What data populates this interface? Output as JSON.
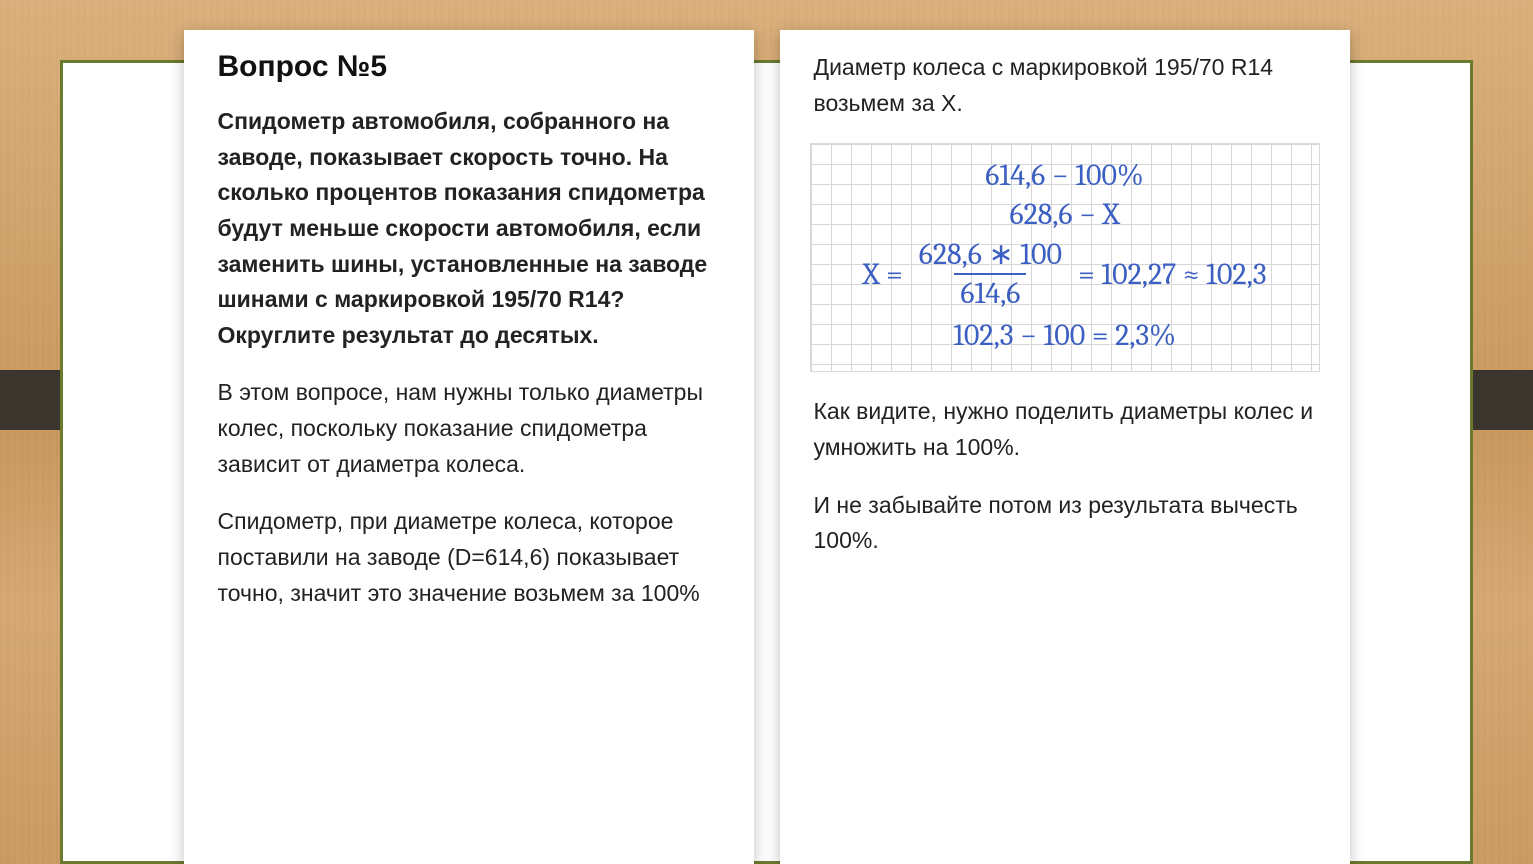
{
  "colors": {
    "frame_border": "#6a7a2f",
    "card_bg": "#ffffff",
    "text": "#222222",
    "heading": "#111111",
    "math_color": "#3b5fc2",
    "grid_line": "#d7d7d7",
    "dark_bar": "#3a352d",
    "wood_base": "#d6a874"
  },
  "typography": {
    "body_font": "Arial",
    "math_font": "Cambria",
    "heading_size_pt": 22,
    "body_size_pt": 17,
    "math_size_pt": 22
  },
  "left": {
    "title": "Вопрос №5",
    "question": "Спидометр автомобиля, собранного на заводе, показывает скорость точно. На сколько процентов показания спидометра будут меньше скорости автомобиля, если заменить шины, установленные на заводе шинами с маркировкой 195/70 R14? Округлите результат до десятых.",
    "p2": "В этом вопросе, нам нужны только диаметры колес, поскольку показание спидометра зависит от диаметра колеса.",
    "p3": "Спидометр, при диаметре колеса, которое поставили на заводе (D=614,6) показывает точно, значит это значение возьмем за 100%"
  },
  "right": {
    "intro": "Диаметр колеса с маркировкой 195/70 R14 возьмем за Х.",
    "math": {
      "line1_left": "614,6",
      "line1_right": "100%",
      "line2_left": "628,6",
      "line2_right": "X",
      "eq_lhs": "X =",
      "frac_num": "628,6 ∗ 100",
      "frac_den": "614,6",
      "eq_mid": "= 102,27 ≈ 102,3",
      "line4": "102,3 − 100 = 2,3%"
    },
    "p2": "Как видите, нужно поделить диаметры колес и умножить на 100%.",
    "p3": "И не забывайте потом из результата вычесть 100%."
  }
}
